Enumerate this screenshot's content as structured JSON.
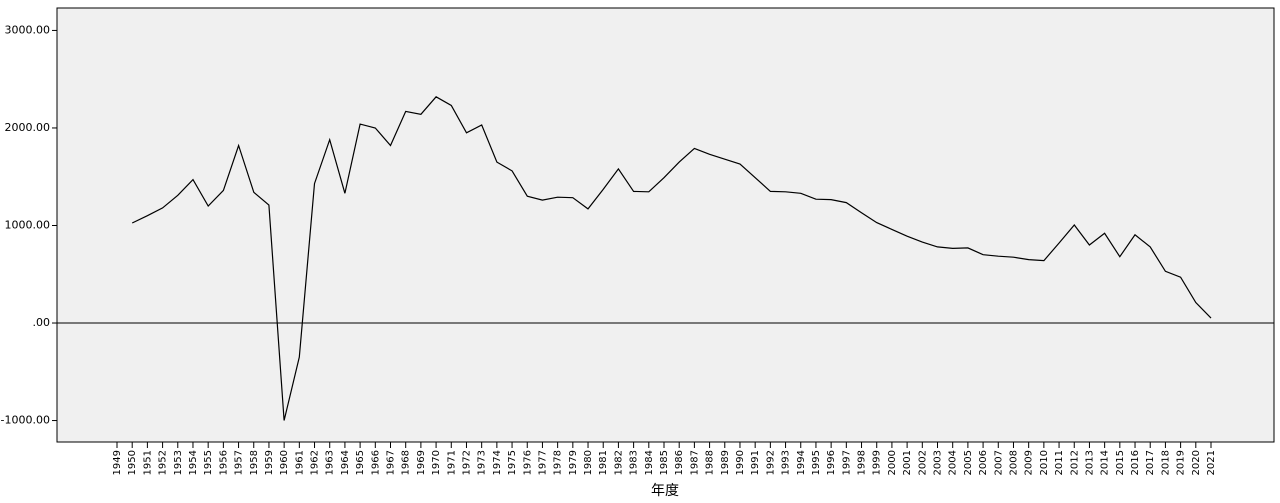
{
  "chart_data": {
    "type": "line",
    "x_label": "年度",
    "categories": [
      "1949",
      "1950",
      "1951",
      "1952",
      "1953",
      "1954",
      "1955",
      "1956",
      "1957",
      "1958",
      "1959",
      "1960",
      "1961",
      "1962",
      "1963",
      "1964",
      "1965",
      "1966",
      "1967",
      "1968",
      "1969",
      "1970",
      "1971",
      "1972",
      "1973",
      "1974",
      "1975",
      "1976",
      "1977",
      "1978",
      "1979",
      "1980",
      "1981",
      "1982",
      "1983",
      "1984",
      "1985",
      "1986",
      "1987",
      "1988",
      "1989",
      "1990",
      "1991",
      "1992",
      "1993",
      "1994",
      "1995",
      "1996",
      "1997",
      "1998",
      "1999",
      "2000",
      "2001",
      "2002",
      "2003",
      "2004",
      "2005",
      "2006",
      "2007",
      "2008",
      "2009",
      "2010",
      "2011",
      "2012",
      "2013",
      "2014",
      "2015",
      "2016",
      "2017",
      "2018",
      "2019",
      "2020",
      "2021"
    ],
    "values": [
      null,
      1026,
      1100,
      1180,
      1310,
      1470,
      1200,
      1360,
      1820,
      1340,
      1210,
      -1000,
      -350,
      1430,
      1880,
      1330,
      2040,
      2000,
      1820,
      2170,
      2140,
      2320,
      2230,
      1950,
      2030,
      1650,
      1560,
      1300,
      1260,
      1290,
      1285,
      1170,
      1370,
      1580,
      1350,
      1345,
      1490,
      1650,
      1790,
      1730,
      1680,
      1630,
      1490,
      1350,
      1345,
      1330,
      1270,
      1265,
      1235,
      1130,
      1030,
      960,
      890,
      830,
      780,
      765,
      770,
      700,
      685,
      675,
      650,
      640,
      820,
      1005,
      800,
      920,
      680,
      905,
      780,
      530,
      470,
      210,
      50
    ],
    "color": "#000000",
    "ylim": [
      -1220,
      3230
    ],
    "yticks": [
      {
        "value": -1000,
        "label": "-1000.00"
      },
      {
        "value": 0,
        "label": ".00"
      },
      {
        "value": 1000,
        "label": "1000.00"
      },
      {
        "value": 2000,
        "label": "2000.00"
      },
      {
        "value": 3000,
        "label": "3000.00"
      }
    ],
    "reference_line": true
  }
}
